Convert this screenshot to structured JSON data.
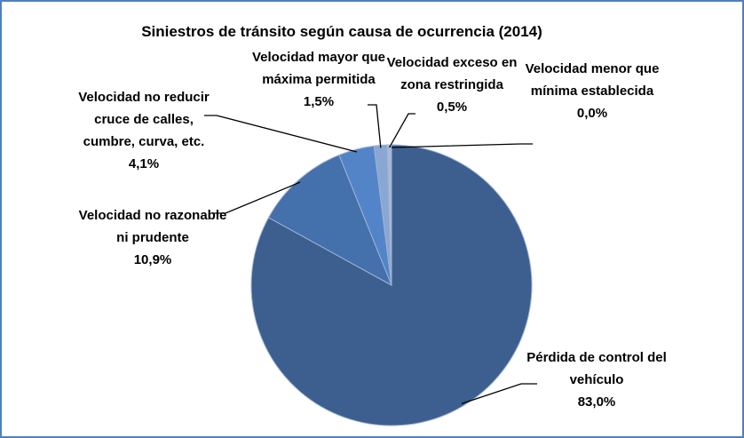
{
  "chart_data": {
    "type": "pie",
    "title": "Siniestros de tránsito según causa de ocurrencia  (2014)",
    "categories": [
      "Pérdida de control del vehículo",
      "Velocidad no razonable ni prudente",
      "Velocidad no reducir cruce de calles, cumbre, curva, etc.",
      "Velocidad mayor que máxima permitida",
      "Velocidad exceso en zona restringida",
      "Velocidad menor que mínima establecida"
    ],
    "values": [
      83.0,
      10.9,
      4.1,
      1.5,
      0.5,
      0.0
    ],
    "value_labels": [
      "83,0%",
      "10,9%",
      "4,1%",
      "1,5%",
      "0,5%",
      "0,0%"
    ],
    "colors": [
      "#3c5f8f",
      "#4470ab",
      "#5384c8",
      "#8aa6d2",
      "#a9bad9",
      "#c9d3e6"
    ]
  }
}
